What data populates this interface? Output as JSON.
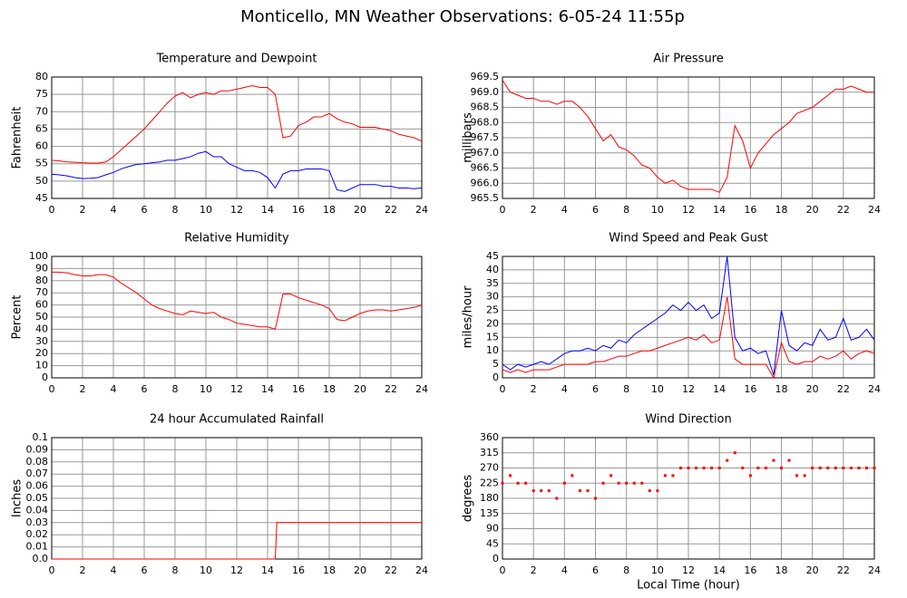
{
  "title": "Monticello, MN Weather Observations: 6-05-24 11:55p",
  "chart_data": [
    {
      "type": "line",
      "title": "Temperature and Dewpoint",
      "ylabel": "Fahrenheit",
      "x": [
        0,
        0.5,
        1,
        1.5,
        2,
        2.5,
        3,
        3.5,
        4,
        4.5,
        5,
        5.5,
        6,
        6.5,
        7,
        7.5,
        8,
        8.5,
        9,
        9.5,
        10,
        10.5,
        11,
        11.5,
        12,
        12.5,
        13,
        13.5,
        14,
        14.5,
        15,
        15.5,
        16,
        16.5,
        17,
        17.5,
        18,
        18.5,
        19,
        19.5,
        20,
        20.5,
        21,
        21.5,
        22,
        22.5,
        23,
        23.5,
        24
      ],
      "series": [
        {
          "color": "#ff0000",
          "values": [
            56,
            55.8,
            55.5,
            55.4,
            55.3,
            55.2,
            55.2,
            55.5,
            57,
            59,
            61,
            63,
            65,
            67.5,
            70,
            72.5,
            74.5,
            75.5,
            74,
            75,
            75.5,
            75,
            76,
            76,
            76.5,
            77,
            77.5,
            77,
            77,
            75,
            62.5,
            63,
            66,
            67,
            68.5,
            68.5,
            69.5,
            68,
            67,
            66.5,
            65.5,
            65.5,
            65.5,
            65,
            64.5,
            63.5,
            63,
            62.5,
            61.5
          ]
        },
        {
          "color": "#0000ff",
          "values": [
            52,
            51.8,
            51.5,
            51,
            50.7,
            50.8,
            51,
            51.8,
            52.5,
            53.5,
            54.2,
            54.8,
            55,
            55.3,
            55.5,
            56,
            56,
            56.5,
            57,
            58,
            58.5,
            57,
            57,
            55,
            54,
            53,
            53,
            52.5,
            51,
            48,
            52,
            53,
            53,
            53.5,
            53.5,
            53.5,
            53,
            47.5,
            47,
            48,
            49,
            49,
            49,
            48.5,
            48.5,
            48,
            48,
            47.8,
            48
          ]
        }
      ],
      "xlim": [
        0,
        24
      ],
      "xticks": [
        0,
        2,
        4,
        6,
        8,
        10,
        12,
        14,
        16,
        18,
        20,
        22,
        24
      ],
      "ylim": [
        45,
        80
      ],
      "yticks": [
        45,
        50,
        55,
        60,
        65,
        70,
        75,
        80
      ],
      "grid": true
    },
    {
      "type": "line",
      "title": "Air Pressure",
      "ylabel": "millibars",
      "x": [
        0,
        0.5,
        1,
        1.5,
        2,
        2.5,
        3,
        3.5,
        4,
        4.5,
        5,
        5.5,
        6,
        6.5,
        7,
        7.5,
        8,
        8.5,
        9,
        9.5,
        10,
        10.5,
        11,
        11.5,
        12,
        12.5,
        13,
        13.5,
        14,
        14.5,
        15,
        15.5,
        16,
        16.5,
        17,
        17.5,
        18,
        18.5,
        19,
        19.5,
        20,
        20.5,
        21,
        21.5,
        22,
        22.5,
        23,
        23.5,
        24
      ],
      "series": [
        {
          "color": "#ff0000",
          "values": [
            969.4,
            969.0,
            968.9,
            968.8,
            968.8,
            968.7,
            968.7,
            968.6,
            968.7,
            968.7,
            968.5,
            968.2,
            967.8,
            967.4,
            967.6,
            967.2,
            967.1,
            966.9,
            966.6,
            966.5,
            966.2,
            966.0,
            966.1,
            965.9,
            965.8,
            965.8,
            965.8,
            965.8,
            965.7,
            966.2,
            967.9,
            967.4,
            966.5,
            967.0,
            967.3,
            967.6,
            967.8,
            968.0,
            968.3,
            968.4,
            968.5,
            968.7,
            968.9,
            969.1,
            969.1,
            969.2,
            969.1,
            969.0,
            969.0
          ]
        }
      ],
      "xlim": [
        0,
        24
      ],
      "xticks": [
        0,
        2,
        4,
        6,
        8,
        10,
        12,
        14,
        16,
        18,
        20,
        22,
        24
      ],
      "ylim": [
        965.5,
        969.5
      ],
      "yticks": [
        965.5,
        {
          "value": 966,
          "label": "966.0"
        },
        966.5,
        {
          "value": 967,
          "label": "967.0"
        },
        967.5,
        {
          "value": 968,
          "label": "968.0"
        },
        968.5,
        {
          "value": 969,
          "label": "969.0"
        },
        969.5
      ],
      "grid": true
    },
    {
      "type": "line",
      "title": "Relative Humidity",
      "ylabel": "Percent",
      "x": [
        0,
        0.5,
        1,
        1.5,
        2,
        2.5,
        3,
        3.5,
        4,
        4.5,
        5,
        5.5,
        6,
        6.5,
        7,
        7.5,
        8,
        8.5,
        9,
        9.5,
        10,
        10.5,
        11,
        11.5,
        12,
        12.5,
        13,
        13.5,
        14,
        14.5,
        15,
        15.5,
        16,
        16.5,
        17,
        17.5,
        18,
        18.5,
        19,
        19.5,
        20,
        20.5,
        21,
        21.5,
        22,
        22.5,
        23,
        23.5,
        24
      ],
      "series": [
        {
          "color": "#ff0000",
          "values": [
            87,
            87,
            86.5,
            85,
            84,
            84,
            85,
            85,
            83,
            78,
            74,
            70,
            65,
            60,
            57,
            55,
            53,
            52,
            55,
            54,
            53,
            54,
            50,
            48,
            45,
            44,
            43,
            42,
            42,
            40,
            69,
            69,
            66,
            64,
            62,
            60,
            57,
            48,
            47,
            50,
            53,
            55,
            56,
            56,
            55,
            56,
            57,
            58,
            60
          ]
        }
      ],
      "xlim": [
        0,
        24
      ],
      "xticks": [
        0,
        2,
        4,
        6,
        8,
        10,
        12,
        14,
        16,
        18,
        20,
        22,
        24
      ],
      "ylim": [
        0,
        100
      ],
      "yticks": [
        0,
        10,
        20,
        30,
        40,
        50,
        60,
        70,
        80,
        90,
        100
      ],
      "grid": true
    },
    {
      "type": "line",
      "title": "Wind Speed and Peak Gust",
      "ylabel": "miles/hour",
      "x": [
        0,
        0.5,
        1,
        1.5,
        2,
        2.5,
        3,
        3.5,
        4,
        4.5,
        5,
        5.5,
        6,
        6.5,
        7,
        7.5,
        8,
        8.5,
        9,
        9.5,
        10,
        10.5,
        11,
        11.5,
        12,
        12.5,
        13,
        13.5,
        14,
        14.5,
        15,
        15.5,
        16,
        16.5,
        17,
        17.5,
        18,
        18.5,
        19,
        19.5,
        20,
        20.5,
        21,
        21.5,
        22,
        22.5,
        23,
        23.5,
        24
      ],
      "series": [
        {
          "color": "#0000ff",
          "values": [
            5,
            3,
            5,
            4,
            5,
            6,
            5,
            7,
            9,
            10,
            10,
            11,
            10,
            12,
            11,
            14,
            13,
            16,
            18,
            20,
            22,
            24,
            27,
            25,
            28,
            25,
            27,
            22,
            24,
            45,
            15,
            10,
            11,
            9,
            10,
            1,
            25,
            12,
            10,
            13,
            12,
            18,
            14,
            15,
            22,
            14,
            15,
            18,
            14
          ]
        },
        {
          "color": "#ff0000",
          "values": [
            3,
            2,
            3,
            2,
            3,
            3,
            3,
            4,
            5,
            5,
            5,
            5,
            6,
            6,
            7,
            8,
            8,
            9,
            10,
            10,
            11,
            12,
            13,
            14,
            15,
            14,
            16,
            13,
            14,
            30,
            7,
            5,
            5,
            5,
            5,
            0,
            13,
            6,
            5,
            6,
            6,
            8,
            7,
            8,
            10,
            7,
            9,
            10,
            9
          ]
        }
      ],
      "xlim": [
        0,
        24
      ],
      "xticks": [
        0,
        2,
        4,
        6,
        8,
        10,
        12,
        14,
        16,
        18,
        20,
        22,
        24
      ],
      "ylim": [
        0,
        45
      ],
      "yticks": [
        0,
        5,
        10,
        15,
        20,
        25,
        30,
        35,
        40,
        45
      ],
      "grid": true
    },
    {
      "type": "line",
      "title": "24 hour Accumulated Rainfall",
      "ylabel": "Inches",
      "x": [
        0,
        14.5,
        14.6,
        24
      ],
      "series": [
        {
          "color": "#ff0000",
          "values": [
            0,
            0,
            0.03,
            0.03
          ]
        }
      ],
      "xlim": [
        0,
        24
      ],
      "xticks": [
        0,
        2,
        4,
        6,
        8,
        10,
        12,
        14,
        16,
        18,
        20,
        22,
        24
      ],
      "ylim": [
        0,
        0.1
      ],
      "yticks": [
        {
          "value": 0,
          "label": "0.0"
        },
        0.01,
        0.02,
        0.03,
        0.04,
        0.05,
        0.06,
        0.07,
        0.08,
        0.09,
        0.1
      ],
      "grid": true
    },
    {
      "type": "scatter",
      "title": "Wind Direction",
      "ylabel": "degrees",
      "xlabel": "Local Time (hour)",
      "x": [
        0,
        0.5,
        1,
        1.5,
        2,
        2.5,
        3,
        3.5,
        4,
        4.5,
        5,
        5.5,
        6,
        6.5,
        7,
        7.5,
        8,
        8.5,
        9,
        9.5,
        10,
        10.5,
        11,
        11.5,
        12,
        12.5,
        13,
        13.5,
        14,
        14.5,
        15,
        15.5,
        16,
        16.5,
        17,
        17.5,
        18,
        18.5,
        19,
        19.5,
        20,
        20.5,
        21,
        21.5,
        22,
        22.5,
        23,
        23.5,
        24
      ],
      "series": [
        {
          "color": "#ff0000",
          "values": [
            225,
            247.5,
            225,
            225,
            202.5,
            202.5,
            202.5,
            180,
            225,
            247.5,
            202.5,
            202.5,
            180,
            225,
            247.5,
            225,
            225,
            225,
            225,
            202.5,
            202.5,
            247.5,
            247.5,
            270,
            270,
            270,
            270,
            270,
            270,
            292.5,
            315,
            270,
            247.5,
            270,
            270,
            292.5,
            270,
            292.5,
            247.5,
            247.5,
            270,
            270,
            270,
            270,
            270,
            270,
            270,
            270,
            270
          ]
        }
      ],
      "xlim": [
        0,
        24
      ],
      "xticks": [
        0,
        2,
        4,
        6,
        8,
        10,
        12,
        14,
        16,
        18,
        20,
        22,
        24
      ],
      "ylim": [
        0,
        360
      ],
      "yticks": [
        0,
        45,
        90,
        135,
        180,
        225,
        270,
        315,
        360
      ],
      "grid": true
    }
  ]
}
